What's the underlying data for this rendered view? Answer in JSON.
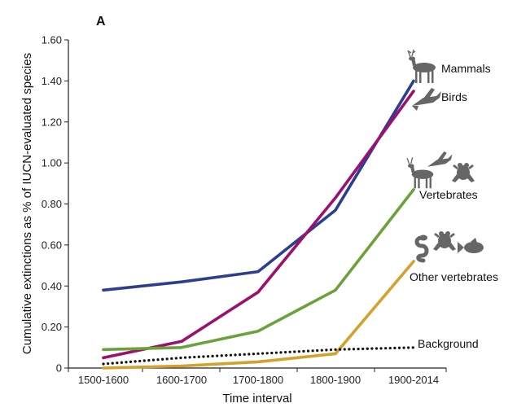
{
  "chart_data": {
    "type": "line",
    "panel_label": "A",
    "xlabel": "Time interval",
    "ylabel": "Cumulative extinctions as % of IUCN-evaluated species",
    "categories": [
      "1500-1600",
      "1600-1700",
      "1700-1800",
      "1800-1900",
      "1900-2014"
    ],
    "ylim": [
      0,
      1.6
    ],
    "yticks": [
      "0",
      "0.20",
      "0.40",
      "0.60",
      "0.80",
      "1.00",
      "1.20",
      "1.40",
      "1.60"
    ],
    "grid": false,
    "series": [
      {
        "name": "Mammals",
        "color": "#2b3f8f",
        "dashed": false,
        "values": [
          0.38,
          0.42,
          0.47,
          0.77,
          1.4
        ]
      },
      {
        "name": "Birds",
        "color": "#9c1170",
        "dashed": false,
        "values": [
          0.05,
          0.13,
          0.37,
          0.83,
          1.35
        ]
      },
      {
        "name": "Vertebrates",
        "color": "#6aa23a",
        "dashed": false,
        "values": [
          0.09,
          0.1,
          0.18,
          0.38,
          0.87
        ]
      },
      {
        "name": "Other vertebrates",
        "color": "#d4a12c",
        "dashed": false,
        "values": [
          0.0,
          0.01,
          0.03,
          0.07,
          0.52
        ]
      },
      {
        "name": "Background",
        "color": "#111111",
        "dashed": true,
        "values": [
          0.02,
          0.05,
          0.07,
          0.09,
          0.1
        ]
      }
    ],
    "icons": {
      "mammals": "deer-icon",
      "birds": "swallow-icon",
      "vertebrates": [
        "deer-icon",
        "swallow-icon",
        "frog-icon"
      ],
      "other_vertebrates": [
        "snake-icon",
        "frog-icon",
        "fish-icon"
      ]
    }
  }
}
